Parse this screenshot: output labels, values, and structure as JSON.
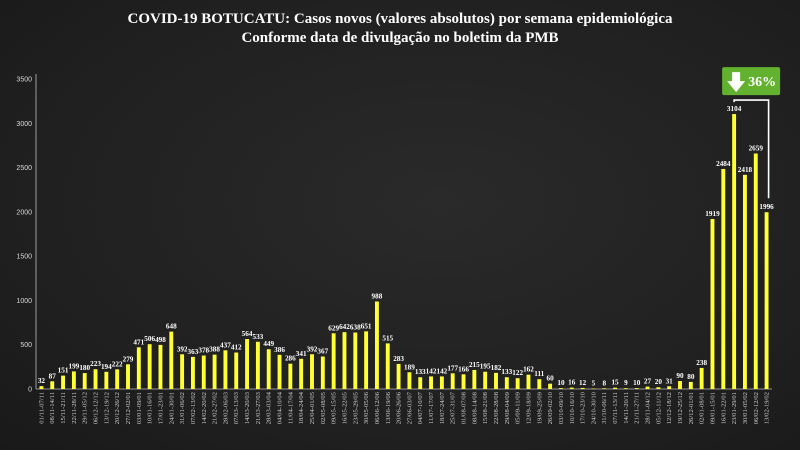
{
  "chart_data": {
    "type": "bar",
    "title": "COVID-19 BOTUCATU: Casos novos (valores absolutos) por semana epidemiológica",
    "subtitle": "Conforme data de divulgação no boletim da PMB",
    "xlabel": "",
    "ylabel": "",
    "ylim": [
      0,
      3500
    ],
    "yticks": [
      0,
      500,
      1000,
      1500,
      2000,
      2500,
      3000,
      3500
    ],
    "grid": false,
    "bar_color": "#ffff33",
    "categories": [
      "01/11-07/11",
      "08/11-14/11",
      "15/11-21/11",
      "22/11-28/11",
      "29/11-05/12",
      "06/12-12/12",
      "13/12-19/12",
      "20/12-26/12",
      "27/12-02/01",
      "03/01-09/01",
      "10/01-16/01",
      "17/01-23/01",
      "24/01-30/01",
      "31/01-06/02",
      "07/02-13/02",
      "14/02-20/02",
      "21/02-27/02",
      "28/02-06/03",
      "07/03-13/03",
      "14/03-20/03",
      "21/03-27/03",
      "28/03-03/04",
      "04/04-10/04",
      "11/04-17/04",
      "18/04-24/04",
      "25/04-01/05",
      "02/05-08/05",
      "09/05-15/05",
      "16/05-22/05",
      "23/05-29/05",
      "30/05-05/06",
      "06/06-12/06",
      "13/06-19/06",
      "20/06-26/06",
      "27/06-03/07",
      "04/07-10/07",
      "11/07-17/07",
      "18/07-24/07",
      "25/07-31/07",
      "01/08-07/08",
      "08/08-14/08",
      "15/08-21/08",
      "22/08-28/08",
      "29/08-04/09",
      "05/09-11/09",
      "12/09-18/09",
      "19/09-25/09",
      "26/09-02/10",
      "03/10-09/10",
      "10/10-16/10",
      "17/10-23/10",
      "24/10-30/10",
      "31/10-06/11",
      "07/11-13/11",
      "14/11-20/11",
      "21/11-27/11",
      "28/11-04/12",
      "05/12-11/12",
      "12/12-18/12",
      "19/12-25/12",
      "26/12-01/01",
      "02/01-08/01",
      "09/01-15/01",
      "16/01-22/01",
      "23/01-29/01",
      "30/01-05/02",
      "06/02-12/02",
      "13/02-19/02"
    ],
    "values": [
      32,
      87,
      151,
      199,
      180,
      223,
      194,
      222,
      279,
      471,
      506,
      498,
      648,
      392,
      363,
      378,
      388,
      437,
      412,
      564,
      533,
      449,
      386,
      286,
      341,
      392,
      367,
      629,
      642,
      638,
      651,
      988,
      515,
      283,
      189,
      133,
      142,
      142,
      177,
      166,
      215,
      195,
      182,
      133,
      122,
      162,
      111,
      60,
      10,
      16,
      12,
      5,
      8,
      15,
      9,
      10,
      27,
      20,
      31,
      90,
      80,
      238,
      1919,
      2484,
      3104,
      2418,
      2659,
      1996
    ],
    "annotations": [
      {
        "text": "36%",
        "type": "callout-down",
        "color": "#63b22f"
      }
    ]
  }
}
